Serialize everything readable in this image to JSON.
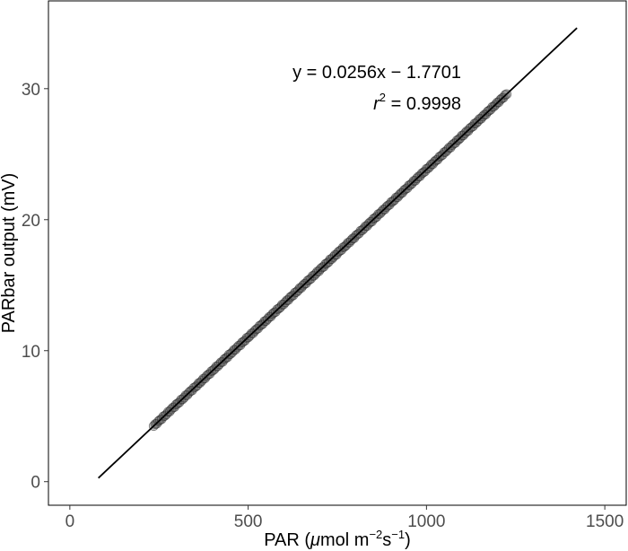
{
  "chart_data": {
    "type": "scatter",
    "title": "",
    "xlabel": "PAR (μmol m−2s−1)",
    "xlabel_parts": {
      "pre": "PAR (",
      "mu": "μ",
      "mol": "mol m",
      "exp1": "−2",
      "s": "s",
      "exp2": "−1",
      "post": ")"
    },
    "ylabel": "PARbar output (mV)",
    "xlim": [
      -60,
      1560
    ],
    "ylim": [
      -1.8,
      36.7
    ],
    "xticks": [
      0,
      500,
      1000,
      1500
    ],
    "xtick_labels": [
      "0",
      "500",
      "1000",
      "1500"
    ],
    "yticks": [
      0,
      10,
      20,
      30
    ],
    "ytick_labels": [
      "0",
      "10",
      "20",
      "30"
    ],
    "grid": false,
    "points_x_range": [
      235,
      1225
    ],
    "point_color": "#555555",
    "fit": {
      "slope": 0.0256,
      "intercept": -1.7701,
      "x_range": [
        80,
        1422
      ],
      "line_color": "#000000"
    },
    "annotations": {
      "equation": "y = 0.0256x − 1.7701",
      "r2_symbol": "r",
      "r2_exponent": "2",
      "r2_value": " = 0.9998"
    }
  }
}
